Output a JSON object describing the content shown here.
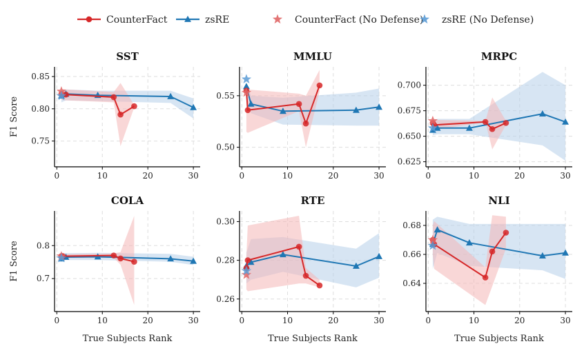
{
  "legend": {
    "items": [
      {
        "label": "CounterFact",
        "marker": "circle",
        "color": "#d62728",
        "line": true
      },
      {
        "label": "zsRE",
        "marker": "triangle",
        "color": "#1f77b4",
        "line": true
      },
      {
        "label": "CounterFact (No Defense)",
        "marker": "star",
        "color": "#e06666",
        "line": false
      },
      {
        "label": "zsRE (No Defense)",
        "marker": "star",
        "color": "#5b9bd5",
        "line": false
      }
    ]
  },
  "colors": {
    "counterfact": "#d62728",
    "zsre": "#1f77b4",
    "counterfact_band": "#f4b6b6",
    "zsre_band": "#b7cfe9",
    "counterfact_nodef": "#e06666",
    "zsre_nodef": "#5b9bd5",
    "grid": "#dddddd"
  },
  "chart_data": [
    {
      "type": "line",
      "title": "SST",
      "xlabel": "",
      "ylabel": "F1 Score",
      "xlim": [
        -0.5,
        31.5
      ],
      "xticks": [
        0,
        10,
        20,
        30
      ],
      "xticklabels": [
        "0",
        "10",
        "20",
        "30"
      ],
      "ylim": [
        0.71,
        0.865
      ],
      "yticks": [
        0.75,
        0.8,
        0.85
      ],
      "yticklabels": [
        "0.75",
        "0.80",
        "0.85"
      ],
      "series": [
        {
          "name": "zsRE",
          "x": [
            1,
            2,
            9,
            25,
            30
          ],
          "y": [
            0.82,
            0.823,
            0.821,
            0.819,
            0.802
          ],
          "band_upper": [
            0.828,
            0.83,
            0.828,
            0.828,
            0.816
          ],
          "band_lower": [
            0.81,
            0.813,
            0.812,
            0.809,
            0.785
          ]
        },
        {
          "name": "CounterFact",
          "x": [
            1,
            2,
            12.5,
            14,
            17
          ],
          "y": [
            0.823,
            0.822,
            0.818,
            0.791,
            0.804
          ],
          "band_upper": [
            0.831,
            0.83,
            0.826,
            0.84,
            0.806
          ],
          "band_lower": [
            0.814,
            0.813,
            0.81,
            0.742,
            0.802
          ]
        }
      ],
      "no_defense": [
        {
          "name": "CounterFact (No Defense)",
          "x": 1,
          "y": 0.827
        },
        {
          "name": "zsRE (No Defense)",
          "x": 1,
          "y": 0.82
        }
      ]
    },
    {
      "type": "line",
      "title": "MMLU",
      "xlabel": "",
      "ylabel": "",
      "xlim": [
        -0.5,
        31.5
      ],
      "xticks": [
        0,
        10,
        20,
        30
      ],
      "xticklabels": [
        "0",
        "10",
        "20",
        "30"
      ],
      "ylim": [
        0.481,
        0.578
      ],
      "yticks": [
        0.5,
        0.55
      ],
      "yticklabels": [
        "0.50",
        "0.55"
      ],
      "series": [
        {
          "name": "zsRE",
          "x": [
            1,
            2,
            9,
            25,
            30
          ],
          "y": [
            0.559,
            0.542,
            0.535,
            0.536,
            0.539
          ],
          "band_upper": [
            0.562,
            0.55,
            0.548,
            0.553,
            0.557
          ],
          "band_lower": [
            0.547,
            0.533,
            0.522,
            0.521,
            0.521
          ]
        },
        {
          "name": "CounterFact",
          "x": [
            1,
            1.3,
            12.5,
            14,
            17
          ],
          "y": [
            0.555,
            0.536,
            0.542,
            0.523,
            0.56
          ],
          "band_upper": [
            0.558,
            0.556,
            0.552,
            0.55,
            0.575
          ],
          "band_lower": [
            0.515,
            0.514,
            0.535,
            0.5,
            0.554
          ]
        }
      ],
      "no_defense": [
        {
          "name": "CounterFact (No Defense)",
          "x": 1,
          "y": 0.553
        },
        {
          "name": "zsRE (No Defense)",
          "x": 1,
          "y": 0.566
        }
      ]
    },
    {
      "type": "line",
      "title": "MRPC",
      "xlabel": "",
      "ylabel": "",
      "xlim": [
        -0.5,
        31.5
      ],
      "xticks": [
        0,
        10,
        20,
        30
      ],
      "xticklabels": [
        "0",
        "10",
        "20",
        "30"
      ],
      "ylim": [
        0.62,
        0.718
      ],
      "yticks": [
        0.625,
        0.65,
        0.675,
        0.7
      ],
      "yticklabels": [
        "0.625",
        "0.650",
        "0.675",
        "0.700"
      ],
      "series": [
        {
          "name": "zsRE",
          "x": [
            1,
            2,
            9,
            25,
            30
          ],
          "y": [
            0.656,
            0.658,
            0.658,
            0.672,
            0.664
          ],
          "band_upper": [
            0.666,
            0.667,
            0.667,
            0.713,
            0.7
          ],
          "band_lower": [
            0.651,
            0.652,
            0.652,
            0.641,
            0.626
          ]
        },
        {
          "name": "CounterFact",
          "x": [
            1,
            1.3,
            12.5,
            14,
            17
          ],
          "y": [
            0.663,
            0.661,
            0.664,
            0.657,
            0.663
          ],
          "band_upper": [
            0.667,
            0.666,
            0.665,
            0.688,
            0.665
          ],
          "band_lower": [
            0.659,
            0.656,
            0.664,
            0.637,
            0.661
          ]
        }
      ],
      "no_defense": [
        {
          "name": "CounterFact (No Defense)",
          "x": 1,
          "y": 0.665
        },
        {
          "name": "zsRE (No Defense)",
          "x": 1,
          "y": 0.658
        }
      ]
    },
    {
      "type": "line",
      "title": "COLA",
      "xlabel": "True Subjects Rank",
      "ylabel": "F1 Score",
      "xlim": [
        -0.5,
        31.5
      ],
      "xticks": [
        0,
        10,
        20,
        30
      ],
      "xticklabels": [
        "0",
        "10",
        "20",
        "30"
      ],
      "ylim": [
        0.6,
        0.905
      ],
      "yticks": [
        0.7,
        0.8
      ],
      "yticklabels": [
        "0.7",
        "0.8"
      ],
      "series": [
        {
          "name": "zsRE",
          "x": [
            1,
            2,
            9,
            25,
            30
          ],
          "y": [
            0.76,
            0.765,
            0.766,
            0.76,
            0.753
          ],
          "band_upper": [
            0.776,
            0.777,
            0.778,
            0.775,
            0.766
          ],
          "band_lower": [
            0.752,
            0.756,
            0.756,
            0.751,
            0.741
          ]
        },
        {
          "name": "CounterFact",
          "x": [
            1,
            1.3,
            12.5,
            14,
            17
          ],
          "y": [
            0.768,
            0.768,
            0.77,
            0.761,
            0.751
          ],
          "band_upper": [
            0.775,
            0.774,
            0.776,
            0.78,
            0.89
          ],
          "band_lower": [
            0.762,
            0.762,
            0.763,
            0.742,
            0.62
          ]
        }
      ],
      "no_defense": [
        {
          "name": "CounterFact (No Defense)",
          "x": 1,
          "y": 0.768
        },
        {
          "name": "zsRE (No Defense)",
          "x": 1,
          "y": 0.762
        }
      ]
    },
    {
      "type": "line",
      "title": "RTE",
      "xlabel": "True Subjects Rank",
      "ylabel": "",
      "xlim": [
        -0.5,
        31.5
      ],
      "xticks": [
        0,
        10,
        20,
        30
      ],
      "xticklabels": [
        "0",
        "10",
        "20",
        "30"
      ],
      "ylim": [
        0.2535,
        0.3055
      ],
      "yticks": [
        0.26,
        0.28,
        0.3
      ],
      "yticklabels": [
        "0.26",
        "0.28",
        "0.30"
      ],
      "series": [
        {
          "name": "zsRE",
          "x": [
            1,
            2,
            9,
            25,
            30
          ],
          "y": [
            0.277,
            0.279,
            0.283,
            0.277,
            0.282
          ],
          "band_upper": [
            0.284,
            0.291,
            0.292,
            0.286,
            0.294
          ],
          "band_lower": [
            0.268,
            0.27,
            0.274,
            0.266,
            0.271
          ]
        },
        {
          "name": "CounterFact",
          "x": [
            1,
            1.3,
            12.5,
            14,
            17
          ],
          "y": [
            0.276,
            0.28,
            0.287,
            0.272,
            0.267
          ],
          "band_upper": [
            0.282,
            0.298,
            0.303,
            0.276,
            0.27
          ],
          "band_lower": [
            0.265,
            0.264,
            0.268,
            0.268,
            0.266
          ]
        }
      ],
      "no_defense": [
        {
          "name": "CounterFact (No Defense)",
          "x": 1,
          "y": 0.2725
        },
        {
          "name": "zsRE (No Defense)",
          "x": 1,
          "y": 0.2745
        }
      ]
    },
    {
      "type": "line",
      "title": "NLI",
      "xlabel": "True Subjects Rank",
      "ylabel": "",
      "xlim": [
        -0.5,
        31.5
      ],
      "xticks": [
        0,
        10,
        20,
        30
      ],
      "xticklabels": [
        "0",
        "10",
        "20",
        "30"
      ],
      "ylim": [
        0.6205,
        0.69
      ],
      "yticks": [
        0.64,
        0.66,
        0.68
      ],
      "yticklabels": [
        "0.64",
        "0.66",
        "0.68"
      ],
      "series": [
        {
          "name": "zsRE",
          "x": [
            1,
            2,
            9,
            25,
            30
          ],
          "y": [
            0.667,
            0.677,
            0.668,
            0.659,
            0.661
          ],
          "band_upper": [
            0.684,
            0.686,
            0.681,
            0.681,
            0.681
          ],
          "band_lower": [
            0.65,
            0.661,
            0.652,
            0.649,
            0.643
          ]
        },
        {
          "name": "CounterFact",
          "x": [
            1,
            1.3,
            12.5,
            14,
            17
          ],
          "y": [
            0.67,
            0.667,
            0.644,
            0.662,
            0.675
          ],
          "band_upper": [
            0.68,
            0.683,
            0.651,
            0.687,
            0.686
          ],
          "band_lower": [
            0.66,
            0.65,
            0.625,
            0.638,
            0.664
          ]
        }
      ],
      "no_defense": [
        {
          "name": "CounterFact (No Defense)",
          "x": 1,
          "y": 0.67
        },
        {
          "name": "zsRE (No Defense)",
          "x": 1,
          "y": 0.666
        }
      ]
    }
  ]
}
